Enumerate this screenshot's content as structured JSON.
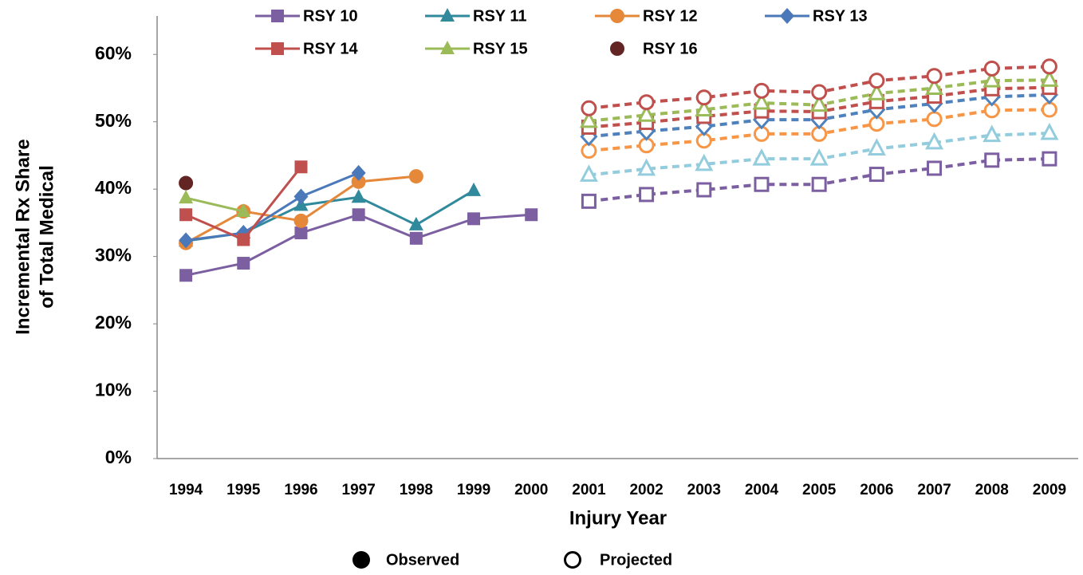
{
  "chart_data": {
    "type": "line",
    "x_label": "Injury Year",
    "y_label": [
      "Incremental Rx Share",
      "of Total Medical"
    ],
    "categories": [
      "1994",
      "1995",
      "1996",
      "1997",
      "1998",
      "1999",
      "2000",
      "2001",
      "2002",
      "2003",
      "2004",
      "2005",
      "2006",
      "2007",
      "2008",
      "2009"
    ],
    "ylim": [
      0,
      65
    ],
    "yticks": [
      {
        "value": 0,
        "label": "0%"
      },
      {
        "value": 10,
        "label": "10%"
      },
      {
        "value": 20,
        "label": "20%"
      },
      {
        "value": 30,
        "label": "30%"
      },
      {
        "value": 40,
        "label": "40%"
      },
      {
        "value": 50,
        "label": "50%"
      },
      {
        "value": 60,
        "label": "60%"
      }
    ],
    "series": [
      {
        "name": "RSY 10",
        "color": "#7b5fa0",
        "projected_color": "#7b5fa0",
        "marker": "square",
        "values": [
          27.2,
          29.0,
          33.5,
          36.2,
          32.7,
          35.6,
          36.2,
          null,
          null,
          null,
          null,
          null,
          null,
          null,
          null,
          null
        ],
        "projected": [
          null,
          null,
          null,
          null,
          null,
          null,
          null,
          38.2,
          39.2,
          39.9,
          40.7,
          40.7,
          42.2,
          43.1,
          44.3,
          44.5
        ]
      },
      {
        "name": "RSY 11",
        "color": "#31899c",
        "projected_color": "#93cddd",
        "marker": "triangle",
        "values": [
          32.3,
          33.5,
          37.6,
          38.8,
          34.7,
          39.8,
          null,
          null,
          null,
          null,
          null,
          null,
          null,
          null,
          null,
          null
        ],
        "projected": [
          null,
          null,
          null,
          null,
          null,
          null,
          null,
          42.1,
          43.0,
          43.7,
          44.5,
          44.5,
          46.0,
          46.9,
          48.0,
          48.3
        ]
      },
      {
        "name": "RSY 12",
        "color": "#e6883a",
        "projected_color": "#f79646",
        "marker": "circle",
        "values": [
          32.0,
          36.7,
          35.3,
          41.1,
          41.9,
          null,
          null,
          null,
          null,
          null,
          null,
          null,
          null,
          null,
          null,
          null
        ],
        "projected": [
          null,
          null,
          null,
          null,
          null,
          null,
          null,
          45.7,
          46.5,
          47.2,
          48.2,
          48.2,
          49.7,
          50.4,
          51.7,
          51.8
        ]
      },
      {
        "name": "RSY 13",
        "color": "#4a78b8",
        "projected_color": "#4f81bd",
        "marker": "diamond",
        "values": [
          32.4,
          33.5,
          38.9,
          42.4,
          null,
          null,
          null,
          null,
          null,
          null,
          null,
          null,
          null,
          null,
          null,
          null
        ],
        "projected": [
          null,
          null,
          null,
          null,
          null,
          null,
          null,
          47.8,
          48.6,
          49.3,
          50.3,
          50.3,
          51.8,
          52.7,
          53.7,
          54.0
        ]
      },
      {
        "name": "RSY 14",
        "color": "#c0504d",
        "projected_color": "#c0504d",
        "marker": "square",
        "values": [
          36.2,
          32.5,
          43.3,
          null,
          null,
          null,
          null,
          null,
          null,
          null,
          null,
          null,
          null,
          null,
          null,
          null
        ],
        "projected": [
          null,
          null,
          null,
          null,
          null,
          null,
          null,
          49.2,
          49.9,
          50.8,
          51.6,
          51.5,
          53.0,
          53.8,
          54.9,
          55.1
        ]
      },
      {
        "name": "RSY 15",
        "color": "#9bbb59",
        "projected_color": "#9bbb59",
        "marker": "triangle",
        "values": [
          38.7,
          36.7,
          null,
          null,
          null,
          null,
          null,
          null,
          null,
          null,
          null,
          null,
          null,
          null,
          null,
          null
        ],
        "projected": [
          null,
          null,
          null,
          null,
          null,
          null,
          null,
          50.1,
          51.0,
          51.8,
          52.8,
          52.5,
          54.2,
          55.0,
          56.1,
          56.2
        ]
      },
      {
        "name": "RSY 16",
        "color": "#632523",
        "projected_color": "#c0504d",
        "marker": "circle",
        "values": [
          40.9,
          null,
          null,
          null,
          null,
          null,
          null,
          null,
          null,
          null,
          null,
          null,
          null,
          null,
          null,
          null
        ],
        "projected": [
          null,
          null,
          null,
          null,
          null,
          null,
          null,
          52.0,
          52.9,
          53.6,
          54.6,
          54.4,
          56.1,
          56.8,
          57.9,
          58.2
        ]
      }
    ],
    "marker_legend": [
      "Observed",
      "Projected"
    ]
  }
}
